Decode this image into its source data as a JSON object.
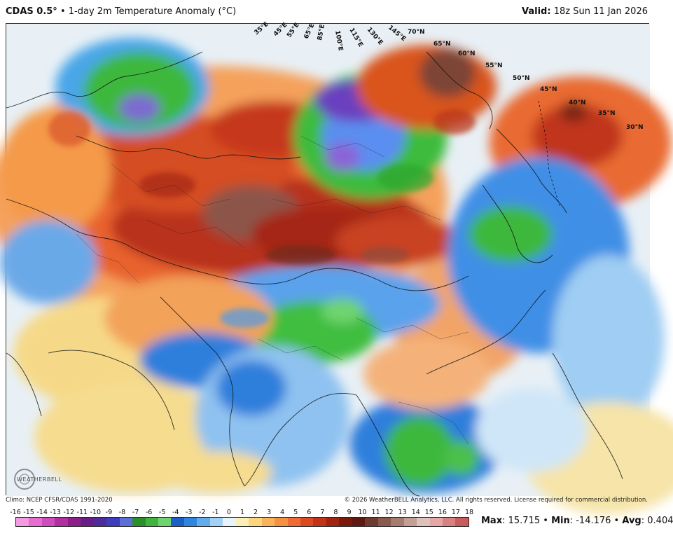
{
  "header": {
    "model": "CDAS 0.5°",
    "separator": "•",
    "product": "1-day 2m Temperature Anomaly (°C)",
    "valid_label": "Valid:",
    "valid_time": "18z Sun 11 Jan 2026"
  },
  "map": {
    "lat_labels": [
      "30°N",
      "35°N",
      "40°N",
      "45°N",
      "50°N",
      "55°N",
      "60°N",
      "65°N",
      "70°N"
    ],
    "lon_labels": [
      "35°E",
      "45°E",
      "55°E",
      "65°E",
      "85°E",
      "100°E",
      "115°E",
      "130°E",
      "145°E"
    ],
    "logo_text": "WEATHERBELL"
  },
  "footer": {
    "climo": "Climo: NCEP CFSR/CDAS 1991-2020",
    "copyright": "© 2026 WeatherBELL Analytics, LLC. All rights reserved. License required for commercial distribution."
  },
  "colorbar": {
    "ticks": [
      "-16",
      "-15",
      "-14",
      "-13",
      "-12",
      "-11",
      "-10",
      "-9",
      "-8",
      "-7",
      "-6",
      "-5",
      "-4",
      "-3",
      "-2",
      "-1",
      "0",
      "1",
      "2",
      "3",
      "4",
      "5",
      "6",
      "7",
      "8",
      "9",
      "10",
      "11",
      "12",
      "13",
      "14",
      "15",
      "16",
      "17",
      "18"
    ],
    "colors": [
      "#f39ae0",
      "#e66ccf",
      "#d04bbb",
      "#b22fa2",
      "#8c1f8c",
      "#6a1d86",
      "#4f2c9c",
      "#3d3dbf",
      "#5c6fd6",
      "#2b8f2b",
      "#3fb53f",
      "#6fd46f",
      "#1b5fc9",
      "#2f86e0",
      "#62abed",
      "#a3d1f5",
      "#e6f3fb",
      "#fbefb7",
      "#fcd67c",
      "#f9b45a",
      "#f59042",
      "#ef6b32",
      "#dc4a22",
      "#c23418",
      "#a02410",
      "#7a1a0d",
      "#5e1a10",
      "#6e3b30",
      "#8a5a4e",
      "#a67c70",
      "#c29e94",
      "#dcc2ba",
      "#e6a6a6",
      "#d98080",
      "#c95b5b"
    ],
    "stats_max_label": "Max",
    "stats_max": "15.715",
    "stats_min_label": "Min",
    "stats_min": "-14.176",
    "stats_avg_label": "Avg",
    "stats_avg": "0.404"
  }
}
